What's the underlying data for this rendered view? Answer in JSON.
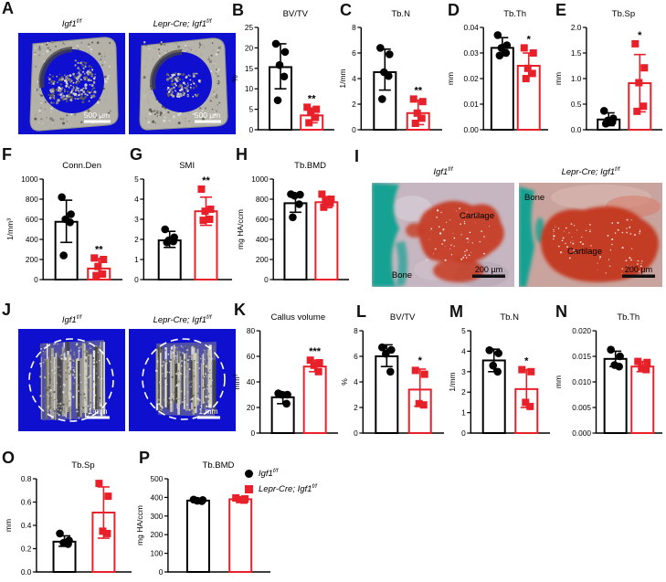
{
  "colors": {
    "group1": "#000000",
    "group2": "#e8202a",
    "microct_bg": "#0f10cf",
    "bone_teal": "#17a292",
    "cartilage_red": "#c63b22"
  },
  "genotypes": {
    "g1": {
      "base": "Igf1",
      "sup": "f/f"
    },
    "g2": {
      "base": "Lepr-Cre; Igf1",
      "sup": "f/f"
    }
  },
  "legend": {
    "items": [
      {
        "marker": "circle",
        "color": "#000000",
        "base": "Igf1",
        "sup": "f/f"
      },
      {
        "marker": "square",
        "color": "#e8202a",
        "base": "Lepr-Cre; Igf1",
        "sup": "f/f"
      }
    ]
  },
  "panels": {
    "A": {
      "letter": "A",
      "scalebar": "500 µm"
    },
    "B": {
      "letter": "B"
    },
    "C": {
      "letter": "C"
    },
    "D": {
      "letter": "D"
    },
    "E": {
      "letter": "E"
    },
    "F": {
      "letter": "F"
    },
    "G": {
      "letter": "G"
    },
    "H": {
      "letter": "H"
    },
    "I": {
      "letter": "I",
      "scalebar": "200 µm",
      "labels": {
        "left_cartilage": "Cartilage",
        "left_bone": "Bone",
        "right_bone": "Bone",
        "right_cartilage": "Cartilage"
      }
    },
    "J": {
      "letter": "J",
      "scalebar": "1 mm"
    },
    "K": {
      "letter": "K"
    },
    "L": {
      "letter": "L"
    },
    "M": {
      "letter": "M"
    },
    "N": {
      "letter": "N"
    },
    "O": {
      "letter": "O"
    },
    "P": {
      "letter": "P"
    }
  },
  "chart_data": [
    {
      "panel": "B",
      "type": "bar",
      "title": "BV/TV",
      "ylabel": "%",
      "ylim": [
        0,
        25
      ],
      "yticks": [
        0,
        5,
        10,
        15,
        20,
        25
      ],
      "ydecimals": 0,
      "series": [
        {
          "name": "Igf1 f/f",
          "marker": "circle",
          "color": "#000000",
          "mean": 15.3,
          "sd_low": 10.0,
          "sd_high": 21.0,
          "points": [
            21,
            19,
            15.8,
            13,
            7.2
          ],
          "sig": ""
        },
        {
          "name": "Lepr-Cre; Igf1 f/f",
          "marker": "square",
          "color": "#e8202a",
          "mean": 3.5,
          "sd_low": 1.7,
          "sd_high": 5.3,
          "points": [
            5.5,
            5.0,
            4.2,
            3.0,
            1.7
          ],
          "sig": "**"
        }
      ]
    },
    {
      "panel": "C",
      "type": "bar",
      "title": "Tb.N",
      "ylabel": "1/mm",
      "ylim": [
        0,
        8
      ],
      "yticks": [
        0,
        2,
        4,
        6,
        8
      ],
      "ydecimals": 0,
      "series": [
        {
          "name": "Igf1 f/f",
          "marker": "circle",
          "color": "#000000",
          "mean": 4.5,
          "sd_low": 3.1,
          "sd_high": 6.3,
          "points": [
            6.4,
            5.9,
            4.5,
            4.2,
            2.4
          ],
          "sig": ""
        },
        {
          "name": "Lepr-Cre; Igf1 f/f",
          "marker": "square",
          "color": "#e8202a",
          "mean": 1.3,
          "sd_low": 0.4,
          "sd_high": 2.3,
          "points": [
            2.4,
            2.2,
            1.3,
            0.9,
            0.5
          ],
          "sig": "**"
        }
      ]
    },
    {
      "panel": "D",
      "type": "bar",
      "title": "Tb.Th",
      "ylabel": "mm",
      "ylim": [
        0,
        0.04
      ],
      "yticks": [
        0,
        0.01,
        0.02,
        0.03,
        0.04
      ],
      "ydecimals": 2,
      "series": [
        {
          "name": "Igf1 f/f",
          "marker": "circle",
          "color": "#000000",
          "mean": 0.032,
          "sd_low": 0.029,
          "sd_high": 0.036,
          "points": [
            0.037,
            0.033,
            0.032,
            0.03,
            0.029
          ],
          "sig": ""
        },
        {
          "name": "Lepr-Cre; Igf1 f/f",
          "marker": "square",
          "color": "#e8202a",
          "mean": 0.025,
          "sd_low": 0.021,
          "sd_high": 0.03,
          "points": [
            0.032,
            0.03,
            0.024,
            0.022,
            0.02
          ],
          "sig": "*"
        }
      ]
    },
    {
      "panel": "E",
      "type": "bar",
      "title": "Tb.Sp",
      "ylabel": "mm",
      "ylim": [
        0,
        2.0
      ],
      "yticks": [
        0,
        0.5,
        1.0,
        1.5,
        2.0
      ],
      "ydecimals": 1,
      "series": [
        {
          "name": "Igf1 f/f",
          "marker": "circle",
          "color": "#000000",
          "mean": 0.2,
          "sd_low": 0.08,
          "sd_high": 0.33,
          "points": [
            0.37,
            0.22,
            0.18,
            0.15,
            0.12
          ],
          "sig": ""
        },
        {
          "name": "Lepr-Cre; Igf1 f/f",
          "marker": "square",
          "color": "#e8202a",
          "mean": 0.91,
          "sd_low": 0.35,
          "sd_high": 1.47,
          "points": [
            1.68,
            1.21,
            0.92,
            0.46,
            0.36
          ],
          "sig": "*"
        }
      ]
    },
    {
      "panel": "F",
      "type": "bar",
      "title": "Conn.Den",
      "ylabel": "1/mm³",
      "ylim": [
        0,
        1000
      ],
      "yticks": [
        0,
        200,
        400,
        600,
        800,
        1000
      ],
      "ydecimals": 0,
      "series": [
        {
          "name": "Igf1 f/f",
          "marker": "circle",
          "color": "#000000",
          "mean": 575,
          "sd_low": 370,
          "sd_high": 790,
          "points": [
            820,
            650,
            600,
            570,
            240
          ],
          "sig": ""
        },
        {
          "name": "Lepr-Cre; Igf1 f/f",
          "marker": "square",
          "color": "#e8202a",
          "mean": 110,
          "sd_low": 30,
          "sd_high": 210,
          "points": [
            215,
            200,
            130,
            55,
            40
          ],
          "sig": "**"
        }
      ]
    },
    {
      "panel": "G",
      "type": "bar",
      "title": "SMI",
      "ylabel": "",
      "ylim": [
        0,
        5
      ],
      "yticks": [
        0,
        1,
        2,
        3,
        4,
        5
      ],
      "ydecimals": 0,
      "series": [
        {
          "name": "Igf1 f/f",
          "marker": "circle",
          "color": "#000000",
          "mean": 1.95,
          "sd_low": 1.6,
          "sd_high": 2.4,
          "points": [
            2.5,
            2.1,
            1.95,
            1.9,
            1.85
          ],
          "sig": ""
        },
        {
          "name": "Lepr-Cre; Igf1 f/f",
          "marker": "square",
          "color": "#e8202a",
          "mean": 3.4,
          "sd_low": 2.7,
          "sd_high": 4.1,
          "points": [
            4.5,
            3.5,
            3.4,
            3.0,
            2.95
          ],
          "sig": "**"
        }
      ]
    },
    {
      "panel": "H",
      "type": "bar",
      "title": "Tb.BMD",
      "ylabel": "mg HA/ccm",
      "ylim": [
        0,
        1000
      ],
      "yticks": [
        0,
        200,
        400,
        600,
        800,
        1000
      ],
      "ydecimals": 0,
      "series": [
        {
          "name": "Igf1 f/f",
          "marker": "circle",
          "color": "#000000",
          "mean": 760,
          "sd_low": 670,
          "sd_high": 855,
          "points": [
            850,
            845,
            835,
            750,
            620
          ],
          "sig": ""
        },
        {
          "name": "Lepr-Cre; Igf1 f/f",
          "marker": "square",
          "color": "#e8202a",
          "mean": 770,
          "sd_low": 715,
          "sd_high": 825,
          "points": [
            850,
            800,
            780,
            760,
            720
          ],
          "sig": ""
        }
      ]
    },
    {
      "panel": "K",
      "type": "bar",
      "title": "Callus volume",
      "ylabel": "mm³",
      "ylim": [
        0,
        80
      ],
      "yticks": [
        0,
        20,
        40,
        60,
        80
      ],
      "ydecimals": 0,
      "series": [
        {
          "name": "Igf1 f/f",
          "marker": "circle",
          "color": "#000000",
          "mean": 28,
          "sd_low": 23,
          "sd_high": 32,
          "points": [
            31,
            30,
            30,
            23
          ],
          "sig": ""
        },
        {
          "name": "Lepr-Cre; Igf1 f/f",
          "marker": "square",
          "color": "#e8202a",
          "mean": 52,
          "sd_low": 48,
          "sd_high": 57,
          "points": [
            57,
            55,
            53,
            48
          ],
          "sig": "***"
        }
      ]
    },
    {
      "panel": "L",
      "type": "bar",
      "title": "BV/TV",
      "ylabel": "%",
      "ylim": [
        0,
        8
      ],
      "yticks": [
        0,
        2,
        4,
        6,
        8
      ],
      "ydecimals": 0,
      "series": [
        {
          "name": "Igf1 f/f",
          "marker": "circle",
          "color": "#000000",
          "mean": 6.0,
          "sd_low": 5.2,
          "sd_high": 6.9,
          "points": [
            6.7,
            6.5,
            6.2,
            4.8
          ],
          "sig": ""
        },
        {
          "name": "Lepr-Cre; Igf1 f/f",
          "marker": "square",
          "color": "#e8202a",
          "mean": 3.4,
          "sd_low": 2.1,
          "sd_high": 5.0,
          "points": [
            4.9,
            4.6,
            2.3,
            2.2
          ],
          "sig": "*"
        }
      ]
    },
    {
      "panel": "M",
      "type": "bar",
      "title": "Tb.N",
      "ylabel": "1/mm",
      "ylim": [
        0,
        5
      ],
      "yticks": [
        0,
        1,
        2,
        3,
        4,
        5
      ],
      "ydecimals": 0,
      "series": [
        {
          "name": "Igf1 f/f",
          "marker": "circle",
          "color": "#000000",
          "mean": 3.55,
          "sd_low": 3.0,
          "sd_high": 4.1,
          "points": [
            4.05,
            3.9,
            3.3,
            3.0
          ],
          "sig": ""
        },
        {
          "name": "Lepr-Cre; Igf1 f/f",
          "marker": "square",
          "color": "#e8202a",
          "mean": 2.15,
          "sd_low": 1.25,
          "sd_high": 3.1,
          "points": [
            3.1,
            3.0,
            1.5,
            1.3
          ],
          "sig": "*"
        }
      ]
    },
    {
      "panel": "N",
      "type": "bar",
      "title": "Tb.Th",
      "ylabel": "mm",
      "ylim": [
        0,
        0.02
      ],
      "yticks": [
        0,
        0.005,
        0.01,
        0.015,
        0.02
      ],
      "ydecimals": 3,
      "series": [
        {
          "name": "Igf1 f/f",
          "marker": "circle",
          "color": "#000000",
          "mean": 0.0145,
          "sd_low": 0.013,
          "sd_high": 0.016,
          "points": [
            0.0163,
            0.015,
            0.0133,
            0.013
          ],
          "sig": ""
        },
        {
          "name": "Lepr-Cre; Igf1 f/f",
          "marker": "square",
          "color": "#e8202a",
          "mean": 0.013,
          "sd_low": 0.012,
          "sd_high": 0.014,
          "points": [
            0.014,
            0.0138,
            0.0126,
            0.0124
          ],
          "sig": ""
        }
      ]
    },
    {
      "panel": "O",
      "type": "bar",
      "title": "Tb.Sp",
      "ylabel": "mm",
      "ylim": [
        0,
        0.8
      ],
      "yticks": [
        0,
        0.2,
        0.4,
        0.6,
        0.8
      ],
      "ydecimals": 1,
      "series": [
        {
          "name": "Igf1 f/f",
          "marker": "circle",
          "color": "#000000",
          "mean": 0.26,
          "sd_low": 0.22,
          "sd_high": 0.31,
          "points": [
            0.33,
            0.27,
            0.25,
            0.24
          ],
          "sig": ""
        },
        {
          "name": "Lepr-Cre; Igf1 f/f",
          "marker": "square",
          "color": "#e8202a",
          "mean": 0.51,
          "sd_low": 0.29,
          "sd_high": 0.73,
          "points": [
            0.76,
            0.65,
            0.35,
            0.33
          ],
          "sig": ""
        }
      ]
    },
    {
      "panel": "P",
      "type": "bar",
      "title": "Tb.BMD",
      "ylabel": "mg HA/ccm",
      "ylim": [
        0,
        500
      ],
      "yticks": [
        0,
        100,
        200,
        300,
        400,
        500
      ],
      "ydecimals": 0,
      "series": [
        {
          "name": "Igf1 f/f",
          "marker": "circle",
          "color": "#000000",
          "mean": 383,
          "sd_low": 375,
          "sd_high": 392,
          "points": [
            388,
            386,
            382,
            380
          ],
          "sig": ""
        },
        {
          "name": "Lepr-Cre; Igf1 f/f",
          "marker": "square",
          "color": "#e8202a",
          "mean": 390,
          "sd_low": 382,
          "sd_high": 398,
          "points": [
            397,
            392,
            388,
            385
          ],
          "sig": ""
        }
      ]
    }
  ]
}
